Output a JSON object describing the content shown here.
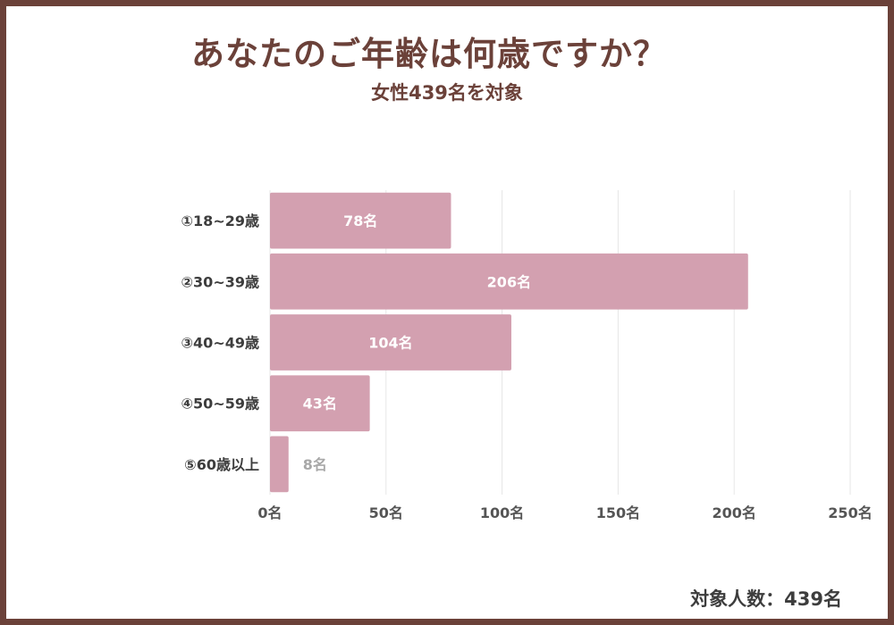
{
  "title": "あなたのご年齢は何歳ですか？",
  "subtitle": "女性439名を対象",
  "footer": "対象人数：439名",
  "colors": {
    "bar": "#d3a0b0",
    "frame": "#6b4139",
    "grid": "#e6e6e6"
  },
  "chart_data": {
    "type": "bar",
    "orientation": "horizontal",
    "title": "あなたのご年齢は何歳ですか？",
    "subtitle": "女性439名を対象",
    "categories": [
      "①18~29歳",
      "②30~39歳",
      "③40~49歳",
      "④50~59歳",
      "⑤60歳以上"
    ],
    "values": [
      78,
      206,
      104,
      43,
      8
    ],
    "value_labels": [
      "78名",
      "206名",
      "104名",
      "43名",
      "8名"
    ],
    "xlim": [
      0,
      250
    ],
    "xticks": [
      0,
      50,
      100,
      150,
      200,
      250
    ],
    "xtick_labels": [
      "0名",
      "50名",
      "100名",
      "150名",
      "200名",
      "250名"
    ],
    "grid": true,
    "legend": "none"
  }
}
